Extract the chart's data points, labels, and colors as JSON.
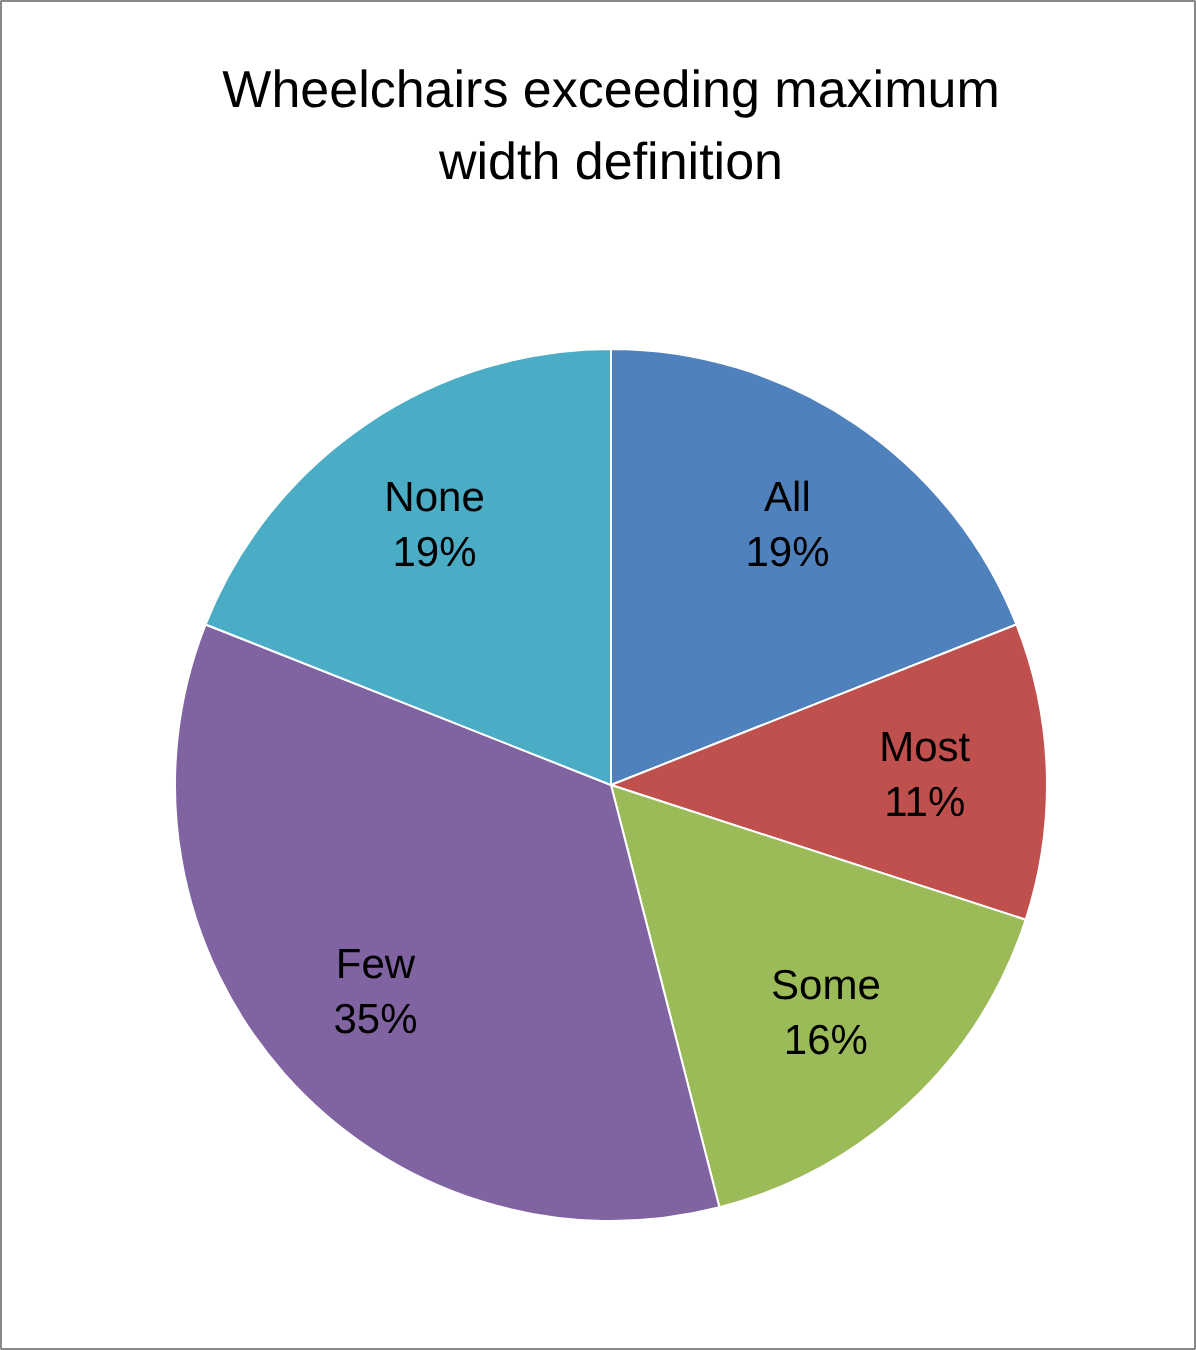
{
  "chart_data": {
    "type": "pie",
    "title": "Wheelchairs exceeding maximum width definition",
    "categories": [
      "All",
      "Most",
      "Some",
      "Few",
      "None"
    ],
    "values": [
      19,
      11,
      16,
      35,
      19
    ],
    "value_labels": [
      "19%",
      "11%",
      "16%",
      "35%",
      "19%"
    ],
    "colors": [
      "#4f81bd",
      "#c0504d",
      "#9bbb59",
      "#8064a2",
      "#4bacc6"
    ]
  }
}
